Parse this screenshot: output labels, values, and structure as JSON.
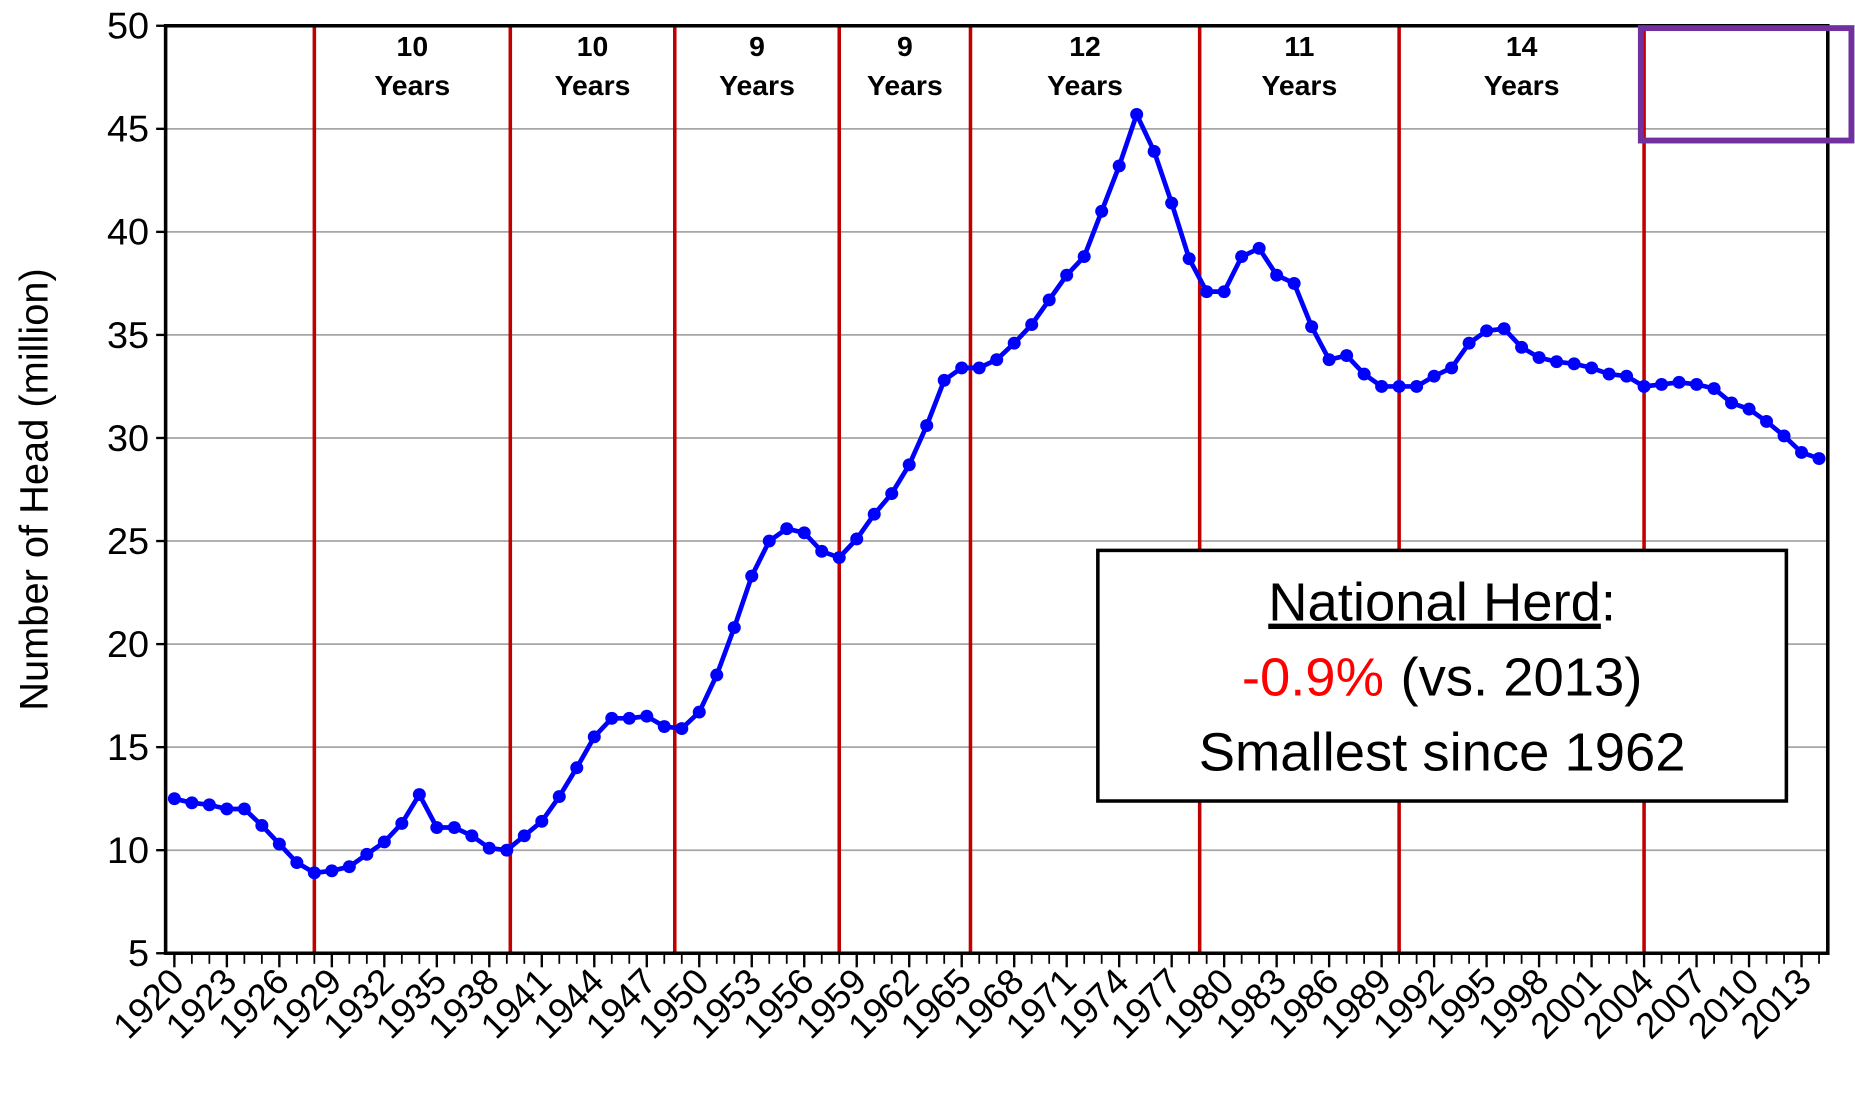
{
  "chart_data": {
    "type": "line",
    "y_label": "Number of Head (million)",
    "x": [
      1920,
      1921,
      1922,
      1923,
      1924,
      1925,
      1926,
      1927,
      1928,
      1929,
      1930,
      1931,
      1932,
      1933,
      1934,
      1935,
      1936,
      1937,
      1938,
      1939,
      1940,
      1941,
      1942,
      1943,
      1944,
      1945,
      1946,
      1947,
      1948,
      1949,
      1950,
      1951,
      1952,
      1953,
      1954,
      1955,
      1956,
      1957,
      1958,
      1959,
      1960,
      1961,
      1962,
      1963,
      1964,
      1965,
      1966,
      1967,
      1968,
      1969,
      1970,
      1971,
      1972,
      1973,
      1974,
      1975,
      1976,
      1977,
      1978,
      1979,
      1980,
      1981,
      1982,
      1983,
      1984,
      1985,
      1986,
      1987,
      1988,
      1989,
      1990,
      1991,
      1992,
      1993,
      1994,
      1995,
      1996,
      1997,
      1998,
      1999,
      2000,
      2001,
      2002,
      2003,
      2004,
      2005,
      2006,
      2007,
      2008,
      2009,
      2010,
      2011,
      2012,
      2013,
      2014
    ],
    "series": [
      {
        "color": "#0000ff",
        "values": [
          12.5,
          12.3,
          12.2,
          12.0,
          12.0,
          11.2,
          10.3,
          9.4,
          8.9,
          9.0,
          9.2,
          9.8,
          10.4,
          11.3,
          12.7,
          11.1,
          11.1,
          10.7,
          10.1,
          10.0,
          10.7,
          11.4,
          12.6,
          14.0,
          15.5,
          16.4,
          16.4,
          16.5,
          16.0,
          15.9,
          16.7,
          18.5,
          20.8,
          23.3,
          25.0,
          25.6,
          25.4,
          24.5,
          24.2,
          25.1,
          26.3,
          27.3,
          28.7,
          30.6,
          32.8,
          33.4,
          33.4,
          33.8,
          34.6,
          35.5,
          36.7,
          37.9,
          38.8,
          41.0,
          43.2,
          45.7,
          43.9,
          41.4,
          38.7,
          37.1,
          37.1,
          38.8,
          39.2,
          37.9,
          37.5,
          35.4,
          33.8,
          34.0,
          33.1,
          32.5,
          32.5,
          32.5,
          33.0,
          33.4,
          34.6,
          35.2,
          35.3,
          34.4,
          33.9,
          33.7,
          33.6,
          33.4,
          33.1,
          33.0,
          32.5,
          32.6,
          32.7,
          32.6,
          32.4,
          31.7,
          31.4,
          30.8,
          30.1,
          29.3,
          29.0
        ]
      }
    ],
    "xlim": [
      1919.5,
      2014.5
    ],
    "xticks": [
      1920,
      1923,
      1926,
      1929,
      1932,
      1935,
      1938,
      1941,
      1944,
      1947,
      1950,
      1953,
      1956,
      1959,
      1962,
      1965,
      1968,
      1971,
      1974,
      1977,
      1980,
      1983,
      1986,
      1989,
      1992,
      1995,
      1998,
      2001,
      2004,
      2007,
      2010,
      2013
    ],
    "ylim": [
      5,
      50
    ],
    "yticks": [
      5,
      10,
      15,
      20,
      25,
      30,
      35,
      40,
      45,
      50
    ],
    "grid": true,
    "cycle_lines": {
      "color": "#c00000",
      "x": [
        1928,
        1939.2,
        1948.6,
        1958,
        1965.5,
        1978.6,
        1990,
        2004
      ]
    },
    "cycle_labels": [
      {
        "length": "10",
        "unit": "Years"
      },
      {
        "length": "10",
        "unit": "Years"
      },
      {
        "length": "9",
        "unit": "Years"
      },
      {
        "length": "9",
        "unit": "Years"
      },
      {
        "length": "12",
        "unit": "Years"
      },
      {
        "length": "11",
        "unit": "Years"
      },
      {
        "length": "14",
        "unit": "Years"
      }
    ],
    "callout": {
      "heading": "National Herd",
      "colon": ":",
      "change": "-0.9%",
      "change_color": "#ff0000",
      "comparison": "(vs. 2013)",
      "note": "Smallest since 1962"
    }
  }
}
